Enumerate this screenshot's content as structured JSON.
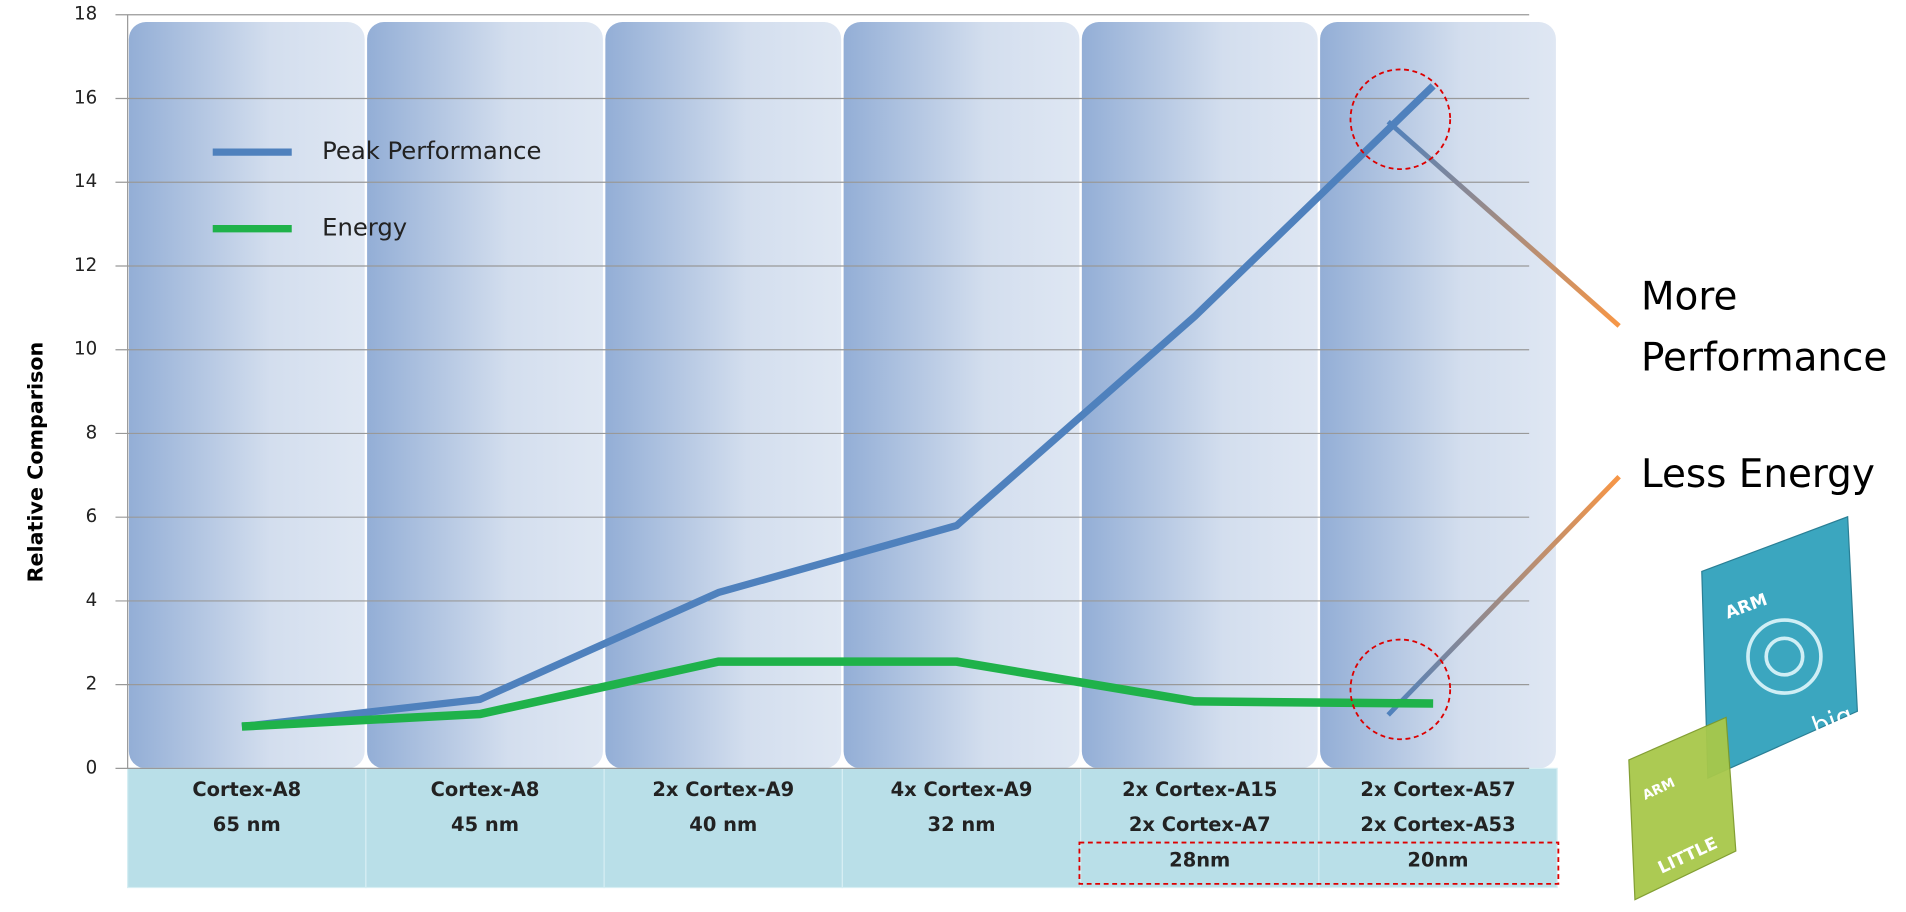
{
  "chart_data": {
    "type": "line",
    "ylabel": "Relative Comparison",
    "categories": [
      [
        "Cortex-A8",
        "65 nm"
      ],
      [
        "Cortex-A8",
        "45 nm"
      ],
      [
        "2x Cortex-A9",
        "40 nm"
      ],
      [
        "4x Cortex-A9",
        "32 nm"
      ],
      [
        "2x Cortex-A15",
        "2x Cortex-A7",
        "28nm"
      ],
      [
        "2x Cortex-A57",
        "2x Cortex-A53",
        "20nm"
      ]
    ],
    "series": [
      {
        "name": "Peak Performance",
        "color": "#4f81bd",
        "values": [
          1,
          1.65,
          4.2,
          5.8,
          10.8,
          16.3
        ]
      },
      {
        "name": "Energy",
        "color": "#1fb24a",
        "values": [
          1,
          1.3,
          2.55,
          2.55,
          1.6,
          1.55
        ]
      }
    ],
    "ylim": [
      0,
      18
    ],
    "yticks": [
      0,
      2,
      4,
      6,
      8,
      10,
      12,
      14,
      16,
      18
    ],
    "grid": true,
    "legend": "upper left",
    "annotations": [
      [
        "More",
        "Performance"
      ],
      [
        "Less Energy"
      ]
    ],
    "chip_labels": [
      "ARM",
      "big",
      "ARM",
      "LITTLE"
    ]
  }
}
